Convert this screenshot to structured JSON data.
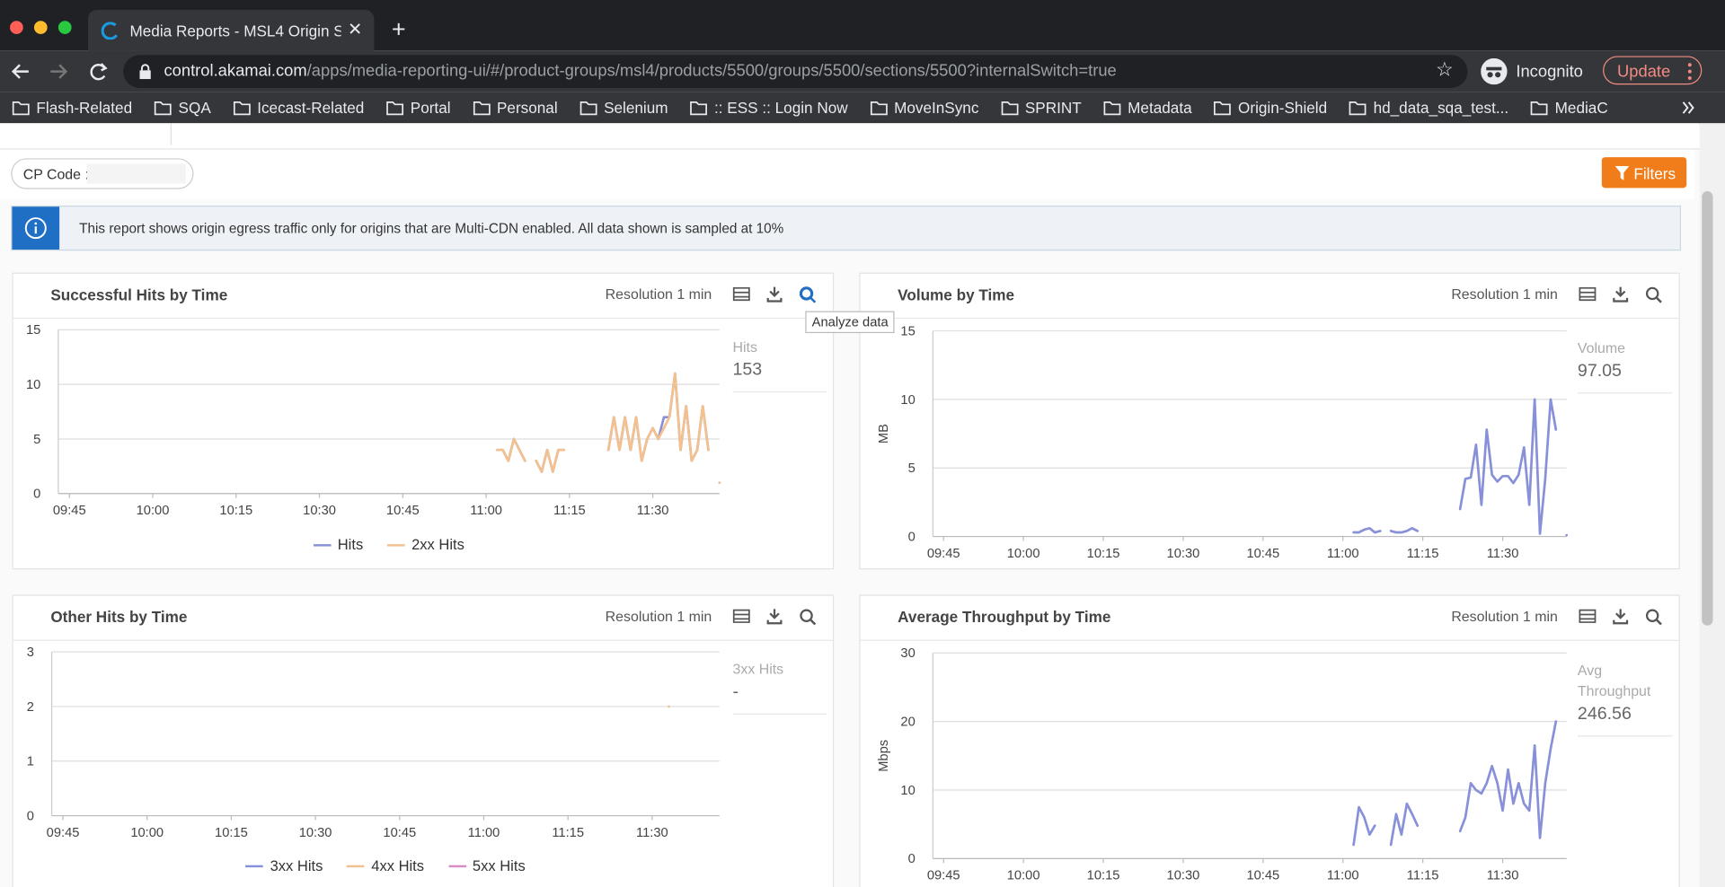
{
  "browser": {
    "tab_title": "Media Reports - MSL4 Origin S",
    "url_host": "control.akamai.com",
    "url_path": "/apps/media-reporting-ui/#/product-groups/msl4/products/5500/groups/5500/sections/5500?internalSwitch=true",
    "profile": "Incognito",
    "update_button": "Update",
    "bookmarks": [
      "Flash-Related",
      "SQA",
      "Icecast-Related",
      "Portal",
      "Personal",
      "Selenium",
      ":: ESS :: Login Now",
      "MoveInSync",
      "SPRINT",
      "Metadata",
      "Origin-Shield",
      "hd_data_sqa_test...",
      "MediaC"
    ]
  },
  "page": {
    "cp_code_label": "CP Code :",
    "filters_button": "Filters",
    "info_banner": "This report shows origin egress traffic only for origins that are Multi-CDN enabled. All data shown is sampled at 10%",
    "tooltip": "Analyze data"
  },
  "chart_data": [
    {
      "type": "line",
      "title": "Successful Hits by Time",
      "resolution": "Resolution 1 min",
      "x": [
        "11:02",
        "11:03",
        "11:04",
        "11:05",
        "11:06",
        "11:07",
        "11:08",
        "11:09",
        "11:10",
        "11:11",
        "11:12",
        "11:13",
        "11:14",
        "11:15",
        "11:16",
        "11:17",
        "11:18",
        "11:19",
        "11:20",
        "11:21",
        "11:22",
        "11:23",
        "11:24",
        "11:25",
        "11:26",
        "11:27",
        "11:28",
        "11:29",
        "11:30",
        "11:31",
        "11:32",
        "11:33",
        "11:34",
        "11:35",
        "11:36",
        "11:37",
        "11:38",
        "11:39",
        "11:40",
        "11:41",
        "11:42"
      ],
      "series": [
        {
          "name": "Hits",
          "color": "#8790d8",
          "values": [
            4,
            4,
            3,
            5,
            4,
            3,
            null,
            3,
            2,
            4,
            2,
            4,
            4,
            null,
            null,
            null,
            null,
            null,
            null,
            null,
            4,
            7,
            4,
            7,
            4,
            7,
            3,
            5,
            6,
            5,
            7,
            7,
            11,
            4,
            8,
            3,
            4,
            8,
            4,
            null,
            1
          ]
        },
        {
          "name": "2xx Hits",
          "color": "#f3c08e",
          "values": [
            4,
            4,
            3,
            5,
            4,
            3,
            null,
            3,
            2,
            4,
            2,
            4,
            4,
            null,
            null,
            null,
            null,
            null,
            null,
            null,
            4,
            7,
            4,
            7,
            4,
            7,
            3,
            5,
            6,
            5,
            6,
            7,
            11,
            4,
            8,
            3,
            4,
            8,
            4,
            null,
            1
          ]
        }
      ],
      "xlim": [
        "09:43",
        "11:42"
      ],
      "xticks": [
        "09:45",
        "10:00",
        "10:15",
        "10:30",
        "10:45",
        "11:00",
        "11:15",
        "11:30"
      ],
      "ylim": [
        0,
        15
      ],
      "yticks": [
        0,
        5,
        10,
        15
      ],
      "grid": true,
      "legend": "bottom",
      "summary": {
        "label": "Hits",
        "value": 153
      }
    },
    {
      "type": "line",
      "title": "Volume by Time",
      "resolution": "Resolution 1 min",
      "y_label": "MB",
      "x": [
        "11:02",
        "11:03",
        "11:04",
        "11:05",
        "11:06",
        "11:07",
        "11:08",
        "11:09",
        "11:10",
        "11:11",
        "11:12",
        "11:13",
        "11:14",
        "11:15",
        "11:16",
        "11:17",
        "11:18",
        "11:19",
        "11:20",
        "11:21",
        "11:22",
        "11:23",
        "11:24",
        "11:25",
        "11:26",
        "11:27",
        "11:28",
        "11:29",
        "11:30",
        "11:31",
        "11:32",
        "11:33",
        "11:34",
        "11:35",
        "11:36",
        "11:37",
        "11:38",
        "11:39",
        "11:40",
        "11:41",
        "11:42"
      ],
      "series": [
        {
          "color": "#8790d8",
          "values": [
            0.3,
            0.3,
            0.5,
            0.6,
            0.3,
            0.4,
            null,
            0.4,
            0.3,
            0.3,
            0.4,
            0.6,
            0.4,
            null,
            null,
            null,
            null,
            null,
            null,
            null,
            2,
            4.2,
            4.3,
            6.7,
            2.3,
            7.8,
            4.5,
            4,
            4.4,
            4.4,
            3.9,
            4.5,
            6.5,
            2.3,
            10,
            0.2,
            4.2,
            10,
            7.8,
            null,
            0.1
          ]
        }
      ],
      "xlim": [
        "09:43",
        "11:42"
      ],
      "xticks": [
        "09:45",
        "10:00",
        "10:15",
        "10:30",
        "10:45",
        "11:00",
        "11:15",
        "11:30"
      ],
      "ylim": [
        0,
        15
      ],
      "yticks": [
        0,
        5,
        10,
        15
      ],
      "grid": true,
      "summary": {
        "label": "Volume",
        "value": 97.05
      }
    },
    {
      "type": "line",
      "title": "Other Hits by Time",
      "resolution": "Resolution 1 min",
      "x": [
        "11:33"
      ],
      "series": [
        {
          "name": "3xx Hits",
          "color": "#8790d8",
          "values": [
            null
          ]
        },
        {
          "name": "4xx Hits",
          "color": "#f3c08e",
          "values": [
            2
          ]
        },
        {
          "name": "5xx Hits",
          "color": "#d78cc6",
          "values": [
            null
          ]
        }
      ],
      "xlim": [
        "09:43",
        "11:42"
      ],
      "xticks": [
        "09:45",
        "10:00",
        "10:15",
        "10:30",
        "10:45",
        "11:00",
        "11:15",
        "11:30"
      ],
      "ylim": [
        0,
        3
      ],
      "yticks": [
        0,
        1,
        2,
        3
      ],
      "grid": true,
      "legend": "bottom",
      "summary": {
        "label": "3xx Hits",
        "value": "-"
      }
    },
    {
      "type": "line",
      "title": "Average Throughput by Time",
      "resolution": "Resolution 1 min",
      "y_label": "Mbps",
      "x": [
        "11:02",
        "11:03",
        "11:04",
        "11:05",
        "11:06",
        "11:07",
        "11:08",
        "11:09",
        "11:10",
        "11:11",
        "11:12",
        "11:13",
        "11:14",
        "11:15",
        "11:16",
        "11:17",
        "11:18",
        "11:19",
        "11:20",
        "11:21",
        "11:22",
        "11:23",
        "11:24",
        "11:25",
        "11:26",
        "11:27",
        "11:28",
        "11:29",
        "11:30",
        "11:31",
        "11:32",
        "11:33",
        "11:34",
        "11:35",
        "11:36",
        "11:37",
        "11:38",
        "11:39",
        "11:40",
        "11:41",
        "11:42"
      ],
      "series": [
        {
          "color": "#8790d8",
          "values": [
            2,
            7.5,
            6,
            3.5,
            4.8,
            null,
            null,
            2,
            6.5,
            3.5,
            8,
            6.5,
            4.8,
            null,
            null,
            null,
            null,
            null,
            null,
            null,
            4,
            6,
            11,
            10,
            9.5,
            11,
            13.5,
            11,
            7,
            13,
            8,
            11,
            8,
            7,
            16.5,
            3,
            11,
            16,
            20,
            null,
            null
          ]
        }
      ],
      "xlim": [
        "09:43",
        "11:42"
      ],
      "xticks": [
        "09:45",
        "10:00",
        "10:15",
        "10:30",
        "10:45",
        "11:00",
        "11:15",
        "11:30"
      ],
      "ylim": [
        0,
        30
      ],
      "yticks": [
        0,
        10,
        20,
        30
      ],
      "grid": true,
      "summary": {
        "label": "Avg Throughput",
        "value": 246.56
      }
    }
  ]
}
